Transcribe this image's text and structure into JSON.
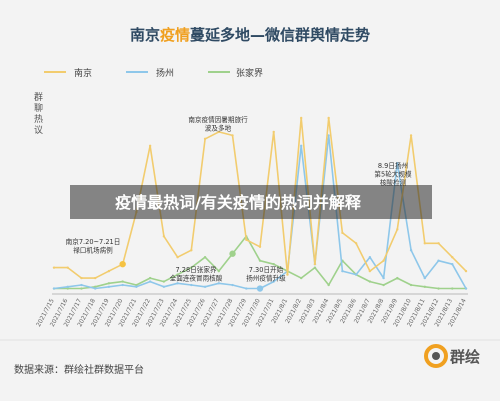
{
  "title": {
    "part1": "南京",
    "highlight": "疫情",
    "part2": "蔓延多地—微信群舆情走势"
  },
  "banner": "疫情最热词/有关疫情的热词并解释",
  "footer": {
    "source": "数据来源：群绘社群数据平台",
    "logo_text": "群绘"
  },
  "colors": {
    "background": "#f3f3f3",
    "title_text": "#2f4a63",
    "title_highlight": "#f0a020",
    "nanjing": "#f2cc6e",
    "yangzhou": "#8ec7ea",
    "zhangjiajie": "#9fd18c",
    "annotation_dot": "#f5c242",
    "yangzhou_dot": "#8ec7ea"
  },
  "chart_data": {
    "type": "line",
    "ylabel": "群聊热议",
    "categories": [
      "2021/7/15",
      "2021/7/16",
      "2021/7/17",
      "2021/7/18",
      "2021/7/19",
      "2021/7/20",
      "2021/7/21",
      "2021/7/22",
      "2021/7/23",
      "2021/7/24",
      "2021/7/25",
      "2021/7/26",
      "2021/7/27",
      "2021/7/28",
      "2021/7/29",
      "2021/7/30",
      "2021/7/31",
      "2021/8/1",
      "2021/8/2",
      "2021/8/3",
      "2021/8/4",
      "2021/8/5",
      "2021/8/6",
      "2021/8/7",
      "2021/8/8",
      "2021/8/9",
      "2021/8/10",
      "2021/8/11",
      "2021/8/12",
      "2021/8/13",
      "2021/8/14"
    ],
    "ylim": [
      0,
      100
    ],
    "series": [
      {
        "name": "南京",
        "color_key": "nanjing",
        "values": [
          14,
          14,
          8,
          8,
          12,
          16,
          46,
          84,
          32,
          20,
          24,
          88,
          92,
          90,
          30,
          26,
          92,
          10,
          100,
          16,
          100,
          34,
          28,
          12,
          18,
          36,
          90,
          28,
          28,
          20,
          12
        ]
      },
      {
        "name": "扬州",
        "color_key": "yangzhou",
        "values": [
          2,
          3,
          4,
          2,
          3,
          4,
          3,
          6,
          3,
          5,
          4,
          3,
          5,
          4,
          2,
          2,
          6,
          12,
          84,
          16,
          90,
          12,
          10,
          20,
          8,
          74,
          24,
          8,
          18,
          16,
          2
        ]
      },
      {
        "name": "张家界",
        "color_key": "zhangjiajie",
        "values": [
          2,
          2,
          2,
          3,
          5,
          6,
          4,
          8,
          6,
          10,
          14,
          20,
          12,
          22,
          32,
          18,
          16,
          12,
          8,
          14,
          4,
          18,
          10,
          6,
          4,
          8,
          4,
          3,
          2,
          2,
          2
        ]
      }
    ],
    "annotations": [
      {
        "lines": [
          "南京7.20~7.21日",
          "禄口机场病例"
        ],
        "series": "南京",
        "index": 5,
        "dot": true
      },
      {
        "lines": [
          "南京疫情因暑期旅行",
          "波及多地"
        ],
        "series": "南京",
        "index": 11,
        "dot": false
      },
      {
        "lines": [
          "7.28日张家界",
          "全面连夜冒雨核酸"
        ],
        "series": "张家界",
        "index": 13,
        "dot": true
      },
      {
        "lines": [
          "7.30日开始",
          "扬州疫情升级"
        ],
        "series": "扬州",
        "index": 15,
        "dot": true
      },
      {
        "lines": [
          "8.9日扬州",
          "第5轮大规模",
          "核酸检测"
        ],
        "series": "扬州",
        "index": 25,
        "dot": false
      }
    ]
  }
}
